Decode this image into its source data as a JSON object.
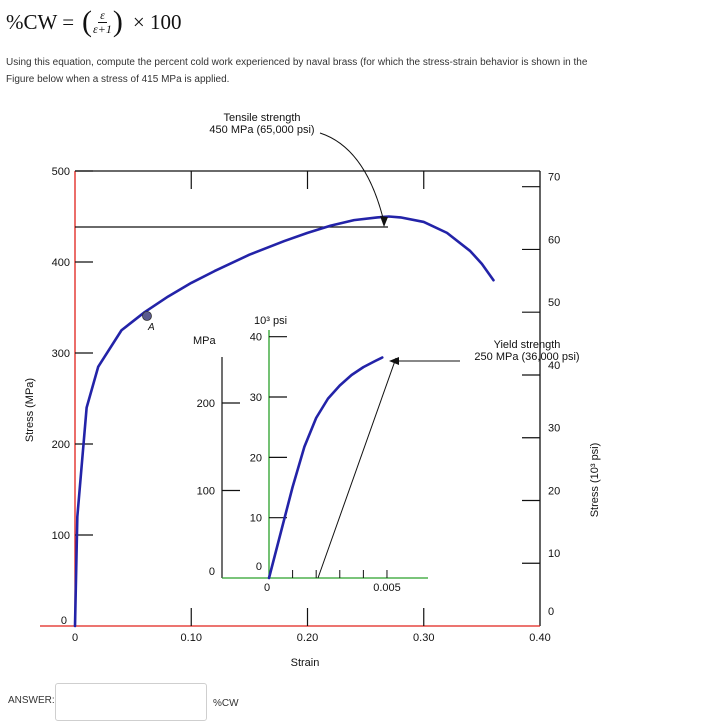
{
  "formula": {
    "lhs": "%CW =",
    "paren_open": "(",
    "numerator": "ε",
    "denominator": "ε+1",
    "paren_close": ")",
    "rhs": "× 100"
  },
  "question": {
    "line1": "Using this equation, compute the percent cold work experienced by naval brass (for which the stress-strain behavior is shown in the",
    "line2": "Figure below when a stress of 415 MPa is applied."
  },
  "figure": {
    "tensile_label_1": "Tensile strength",
    "tensile_label_2": "450 MPa (65,000 psi)",
    "yield_label_1": "Yield strength",
    "yield_label_2": "250 MPa (36,000 psi)",
    "point_label": "A",
    "main_xlabel": "Strain",
    "main_ylabel_left": "Stress (MPa)",
    "main_ylabel_right": "Stress (10³ psi)",
    "main_x_ticks": [
      "0",
      "0.10",
      "0.20",
      "0.30",
      "0.40"
    ],
    "main_y_ticks_mpa": [
      "0",
      "100",
      "200",
      "300",
      "400",
      "500"
    ],
    "main_y_ticks_psi": [
      "0",
      "10",
      "20",
      "30",
      "40",
      "50",
      "60",
      "70"
    ],
    "inset_mpa_label": "MPa",
    "inset_psi_label": "10³ psi",
    "inset_y_ticks_mpa": [
      "0",
      "100",
      "200"
    ],
    "inset_y_ticks_psi": [
      "0",
      "10",
      "20",
      "30",
      "40"
    ],
    "inset_x_ticks": [
      "0",
      "0.005"
    ],
    "colors": {
      "curve": "#2323a8",
      "left_axis": "#e0201a",
      "inset_axis": "#2aa02a",
      "ink": "#111111",
      "point": "#5a5a90"
    }
  },
  "answer": {
    "label": "ANSWER:",
    "value": "",
    "unit": "%CW"
  },
  "chart_data": [
    {
      "type": "line",
      "xlabel": "Strain",
      "ylabel": "Stress (MPa)",
      "xlim": [
        0,
        0.4
      ],
      "ylim": [
        0,
        500
      ],
      "tensile_strength_mpa": 450,
      "tensile_strength_psi": 65000,
      "series": [
        {
          "x": [
            0,
            0.002,
            0.01,
            0.02,
            0.04,
            0.06,
            0.08,
            0.1,
            0.12,
            0.15,
            0.18,
            0.2,
            0.22,
            0.24,
            0.26,
            0.27,
            0.28,
            0.3,
            0.32,
            0.34,
            0.35,
            0.36
          ],
          "y": [
            0,
            120,
            240,
            285,
            325,
            345,
            362,
            377,
            390,
            408,
            423,
            432,
            440,
            446,
            449,
            450,
            449,
            444,
            432,
            412,
            398,
            380
          ]
        }
      ],
      "annotations": [
        "A"
      ]
    },
    {
      "type": "line",
      "xlabel": "Strain",
      "ylabel": "MPa",
      "xlim": [
        0,
        0.007
      ],
      "ylim": [
        0,
        290
      ],
      "yield_strength_mpa": 250,
      "yield_strength_psi": 36000,
      "offset_strain": 0.002,
      "series": [
        {
          "x": [
            0,
            0.0005,
            0.001,
            0.0015,
            0.002,
            0.0025,
            0.003,
            0.0035,
            0.004,
            0.0045,
            0.0048
          ],
          "y": [
            0,
            52,
            104,
            150,
            183,
            205,
            220,
            232,
            241,
            248,
            252
          ]
        }
      ]
    }
  ]
}
